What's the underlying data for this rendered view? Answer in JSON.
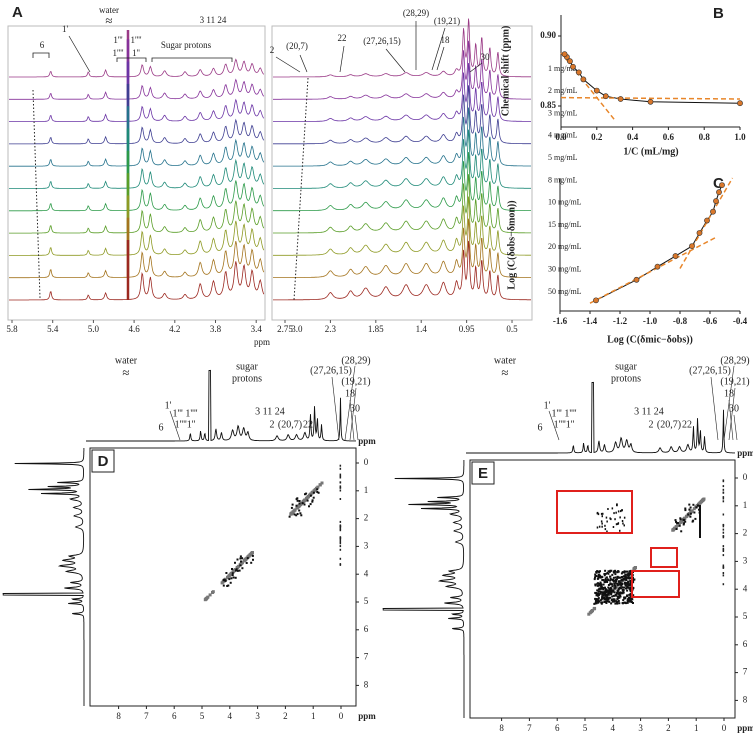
{
  "figure": {
    "panel_a": {
      "label": "A",
      "xlabel": "ppm",
      "concentrations": [
        "1 mg/mL",
        "2 mg/mL",
        "3 mg/mL",
        "4 mg/mL",
        "5 mg/mL",
        "8 mg/mL",
        "10 mg/mL",
        "15 mg/mL",
        "20 mg/mL",
        "30 mg/mL",
        "50 mg/mL"
      ],
      "trace_colors": [
        "#9a3a86",
        "#86329a",
        "#6b35a6",
        "#3f3f92",
        "#24728c",
        "#1e8a78",
        "#2c9a48",
        "#5a9e28",
        "#8e9a24",
        "#a4741e",
        "#9c2820"
      ],
      "left_xticks": [
        5.8,
        5.4,
        {
          "value": 5,
          "label": "5.0"
        },
        4.6,
        4.2,
        3.8,
        3.4,
        {
          "value": 3,
          "label": "3.0"
        }
      ],
      "right_xticks": [
        2.75,
        2.3,
        1.85,
        1.4,
        0.95,
        0.5
      ],
      "left_annotations": [
        "6",
        "1'",
        "water",
        "≈",
        "1'''",
        "1''''",
        "1''''",
        "1''",
        "Sugar protons",
        "3 11 24"
      ],
      "right_annotations": [
        "2",
        "(20,7)",
        "22",
        "(27,26,15)",
        "(28,29)",
        "(19,21)",
        "18",
        "30"
      ]
    },
    "panel_d": {
      "label": "D",
      "xlabel": "ppm",
      "ylabel": "ppm",
      "xticks": [
        8,
        7,
        6,
        5,
        4,
        3,
        2,
        1,
        0
      ],
      "yticks": [
        0,
        1,
        2,
        3,
        4,
        5,
        6,
        7,
        8
      ],
      "annotations": [
        "water",
        "≈",
        "sugar",
        "protons",
        "1'",
        "1''' 1''''",
        "1''''1''",
        "6",
        "3 11 24",
        "2",
        "(20,7)",
        "22",
        "(27,26,15)",
        "(28,29)",
        "(19,21)",
        "18",
        "30"
      ]
    },
    "panel_e": {
      "label": "E",
      "xlabel": "ppm",
      "ylabel": "ppm",
      "xticks": [
        8,
        7,
        6,
        5,
        4,
        3,
        2,
        1,
        0
      ],
      "yticks": [
        0,
        1,
        2,
        3,
        4,
        5,
        6,
        7,
        8
      ],
      "annotations": [
        "water",
        "≈",
        "sugar",
        "protons",
        "1'",
        "1''' 1''''",
        "1''''1''",
        "6",
        "3 11 24",
        "2",
        "(20,7)",
        "22",
        "(27,26,15)",
        "(28,29)",
        "(19,21)",
        "18",
        "30"
      ]
    }
  },
  "chart_data": [
    {
      "type": "scatter",
      "label": "B",
      "xlabel": "1/C (mL/mg)",
      "ylabel": "Chemical shift (ppm)",
      "x": [
        1,
        0.5,
        0.333,
        0.25,
        0.2,
        0.125,
        0.1,
        0.067,
        0.05,
        0.033,
        0.02
      ],
      "values": [
        0.852,
        0.853,
        0.855,
        0.857,
        0.861,
        0.869,
        0.874,
        0.878,
        0.882,
        0.885,
        0.887
      ],
      "color": "#d9772a",
      "line_color": "#111111",
      "fit_color": "#e8862a",
      "fits": [
        {
          "x": [
            0,
            0.3
          ],
          "values": [
            0.888,
            0.84
          ]
        },
        {
          "x": [
            0,
            1
          ],
          "values": [
            0.856,
            0.855
          ]
        }
      ],
      "xlim": [
        0,
        1
      ],
      "ylim": [
        0.835,
        0.915
      ],
      "xticks": [
        {
          "value": 0,
          "label": "0.0"
        },
        0.2,
        0.4,
        0.6,
        0.8,
        {
          "value": 1,
          "label": "1.0"
        }
      ],
      "yticks": [
        0.85,
        {
          "value": 0.9,
          "label": "0.90"
        }
      ]
    },
    {
      "type": "scatter",
      "label": "C",
      "xlabel": "Log (C(δmic−δobs))",
      "ylabel": "Log (C(δobs−δmon))",
      "x": [
        -1.36,
        -1.09,
        -0.95,
        -0.83,
        -0.72,
        -0.67,
        -0.62,
        -0.58,
        -0.56,
        -0.54,
        -0.52
      ],
      "values": [
        -3.0,
        -2.42,
        -2.05,
        -1.75,
        -1.47,
        -1.1,
        -0.75,
        -0.5,
        -0.2,
        0.05,
        0.25
      ],
      "color": "#d9772a",
      "line_color": "#111111",
      "fit_color": "#e8862a",
      "fits": [
        {
          "x": [
            -1.4,
            -0.55
          ],
          "values": [
            -3.08,
            -1.2
          ]
        },
        {
          "x": [
            -0.8,
            -0.45
          ],
          "values": [
            -2.1,
            0.45
          ]
        }
      ],
      "xlim": [
        -1.6,
        -0.4
      ],
      "ylim": [
        -3.3,
        0.45
      ],
      "xticks": [
        -1.6,
        -1.4,
        -1.2,
        {
          "value": -1,
          "label": "-1.0"
        },
        -0.8,
        -0.6,
        -0.4
      ]
    }
  ]
}
